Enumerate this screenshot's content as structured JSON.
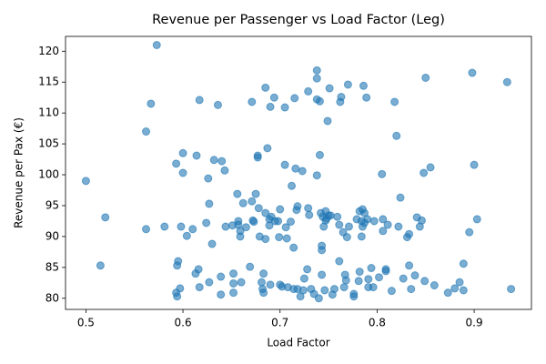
{
  "chart_data": {
    "type": "scatter",
    "title": "Revenue per Passenger vs Load Factor (Leg)",
    "xlabel": "Load Factor",
    "ylabel": "Revenue per Pax (€)",
    "color": "#1f77b4",
    "xlim": [
      0.479,
      0.959
    ],
    "ylim": [
      78.2,
      122.4
    ],
    "xticks": [
      0.5,
      0.6,
      0.7,
      0.8,
      0.9
    ],
    "yticks": [
      80,
      85,
      90,
      95,
      100,
      105,
      110,
      115,
      120
    ],
    "x": [
      0.5,
      0.52,
      0.515,
      0.562,
      0.567,
      0.573,
      0.562,
      0.581,
      0.593,
      0.594,
      0.595,
      0.593,
      0.594,
      0.597,
      0.598,
      0.6,
      0.6,
      0.604,
      0.61,
      0.614,
      0.617,
      0.616,
      0.617,
      0.613,
      0.624,
      0.626,
      0.627,
      0.63,
      0.632,
      0.627,
      0.636,
      0.639,
      0.64,
      0.643,
      0.639,
      0.644,
      0.651,
      0.652,
      0.652,
      0.652,
      0.657,
      0.656,
      0.657,
      0.659,
      0.659,
      0.662,
      0.66,
      0.665,
      0.669,
      0.671,
      0.671,
      0.672,
      0.673,
      0.675,
      0.677,
      0.677,
      0.678,
      0.679,
      0.681,
      0.682,
      0.683,
      0.683,
      0.685,
      0.685,
      0.685,
      0.687,
      0.689,
      0.691,
      0.69,
      0.689,
      0.69,
      0.694,
      0.695,
      0.698,
      0.7,
      0.699,
      0.7,
      0.702,
      0.705,
      0.705,
      0.706,
      0.707,
      0.708,
      0.711,
      0.712,
      0.714,
      0.714,
      0.715,
      0.716,
      0.717,
      0.718,
      0.718,
      0.721,
      0.723,
      0.724,
      0.725,
      0.728,
      0.729,
      0.729,
      0.73,
      0.732,
      0.735,
      0.738,
      0.738,
      0.738,
      0.738,
      0.74,
      0.741,
      0.741,
      0.742,
      0.743,
      0.743,
      0.743,
      0.744,
      0.745,
      0.746,
      0.747,
      0.747,
      0.748,
      0.75,
      0.749,
      0.751,
      0.752,
      0.754,
      0.756,
      0.759,
      0.761,
      0.761,
      0.762,
      0.763,
      0.765,
      0.766,
      0.767,
      0.768,
      0.769,
      0.77,
      0.771,
      0.776,
      0.776,
      0.779,
      0.781,
      0.782,
      0.782,
      0.784,
      0.784,
      0.785,
      0.785,
      0.786,
      0.787,
      0.787,
      0.789,
      0.79,
      0.791,
      0.791,
      0.794,
      0.796,
      0.797,
      0.802,
      0.805,
      0.806,
      0.806,
      0.809,
      0.809,
      0.811,
      0.815,
      0.818,
      0.82,
      0.822,
      0.824,
      0.827,
      0.831,
      0.833,
      0.833,
      0.835,
      0.839,
      0.841,
      0.844,
      0.846,
      0.848,
      0.85,
      0.849,
      0.855,
      0.859,
      0.873,
      0.88,
      0.885,
      0.889,
      0.889,
      0.895,
      0.898,
      0.9,
      0.903,
      0.934,
      0.938
    ],
    "values": [
      99.0,
      93.1,
      85.3,
      107.0,
      111.5,
      121.0,
      91.2,
      91.6,
      101.8,
      85.3,
      86.0,
      80.9,
      80.3,
      81.6,
      91.6,
      103.5,
      100.3,
      90.1,
      91.2,
      103.1,
      112.1,
      84.7,
      81.8,
      84.0,
      92.2,
      99.4,
      95.3,
      88.8,
      102.4,
      82.6,
      111.3,
      83.5,
      102.2,
      100.7,
      80.6,
      91.6,
      91.8,
      84.0,
      82.4,
      80.9,
      92.5,
      96.9,
      91.9,
      90.9,
      90.0,
      95.4,
      82.6,
      91.5,
      85.1,
      95.7,
      111.8,
      92.6,
      92.4,
      96.9,
      102.8,
      103.1,
      94.6,
      90.0,
      82.6,
      81.5,
      80.9,
      84.0,
      89.6,
      114.1,
      93.8,
      104.3,
      92.8,
      93.2,
      111.0,
      91.8,
      82.2,
      112.5,
      92.5,
      92.5,
      94.4,
      89.9,
      82.2,
      81.9,
      110.9,
      101.6,
      91.5,
      89.7,
      81.8,
      92.4,
      98.2,
      88.2,
      81.5,
      112.4,
      101.0,
      94.3,
      94.9,
      81.5,
      80.3,
      100.6,
      81.3,
      83.2,
      84.7,
      113.5,
      94.6,
      93.5,
      81.5,
      80.7,
      116.9,
      115.6,
      99.9,
      112.2,
      80.0,
      111.9,
      103.2,
      93.8,
      88.5,
      87.8,
      83.8,
      93.2,
      91.6,
      81.3,
      92.6,
      94.1,
      92.9,
      93.4,
      108.7,
      114.0,
      93.4,
      80.6,
      81.5,
      93.2,
      91.9,
      86.0,
      111.8,
      112.6,
      90.7,
      81.8,
      83.8,
      82.9,
      89.9,
      114.6,
      91.6,
      80.7,
      80.3,
      92.8,
      82.8,
      84.3,
      94.1,
      92.5,
      90.0,
      94.4,
      91.6,
      114.4,
      93.8,
      92.2,
      112.5,
      92.8,
      81.8,
      83.1,
      84.9,
      81.8,
      92.5,
      83.4,
      100.1,
      90.9,
      92.8,
      84.7,
      84.4,
      91.9,
      81.2,
      111.8,
      106.3,
      91.6,
      96.3,
      83.2,
      89.9,
      90.4,
      85.3,
      81.5,
      83.7,
      93.1,
      91.6,
      92.6,
      100.3,
      115.7,
      82.8,
      101.2,
      82.1,
      80.9,
      81.6,
      82.6,
      85.6,
      81.3,
      90.7,
      116.5,
      101.6,
      92.8,
      115.0,
      81.5
    ]
  }
}
